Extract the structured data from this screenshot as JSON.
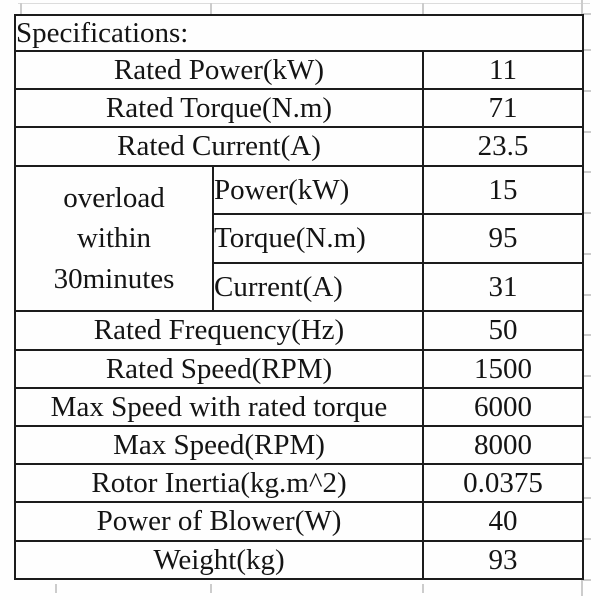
{
  "table": {
    "title": "Specifications:",
    "rows_top": [
      {
        "label": "Rated Power(kW)",
        "value": "11"
      },
      {
        "label": "Rated Torque(N.m)",
        "value": "71"
      },
      {
        "label": "Rated Current(A)",
        "value": "23.5"
      }
    ],
    "overload": {
      "lines": [
        "overload",
        "within",
        "30minutes"
      ],
      "rows": [
        {
          "label": "Power(kW)",
          "value": "15"
        },
        {
          "label": "Torque(N.m)",
          "value": "95"
        },
        {
          "label": "Current(A)",
          "value": "31"
        }
      ]
    },
    "rows_bottom": [
      {
        "label": "Rated Frequency(Hz)",
        "value": "50"
      },
      {
        "label": "Rated Speed(RPM)",
        "value": "1500"
      },
      {
        "label": "Max Speed with rated torque",
        "value": "6000"
      },
      {
        "label": "Max Speed(RPM)",
        "value": "8000"
      },
      {
        "label": "Rotor Inertia(kg.m^2)",
        "value": "0.0375"
      },
      {
        "label": "Power of Blower(W)",
        "value": "40"
      },
      {
        "label": "Weight(kg)",
        "value": "93"
      }
    ],
    "colors": {
      "border": "#1c1c1c",
      "text": "#141414",
      "faint_grid": "#cccccc",
      "background": "#fefefe"
    }
  }
}
